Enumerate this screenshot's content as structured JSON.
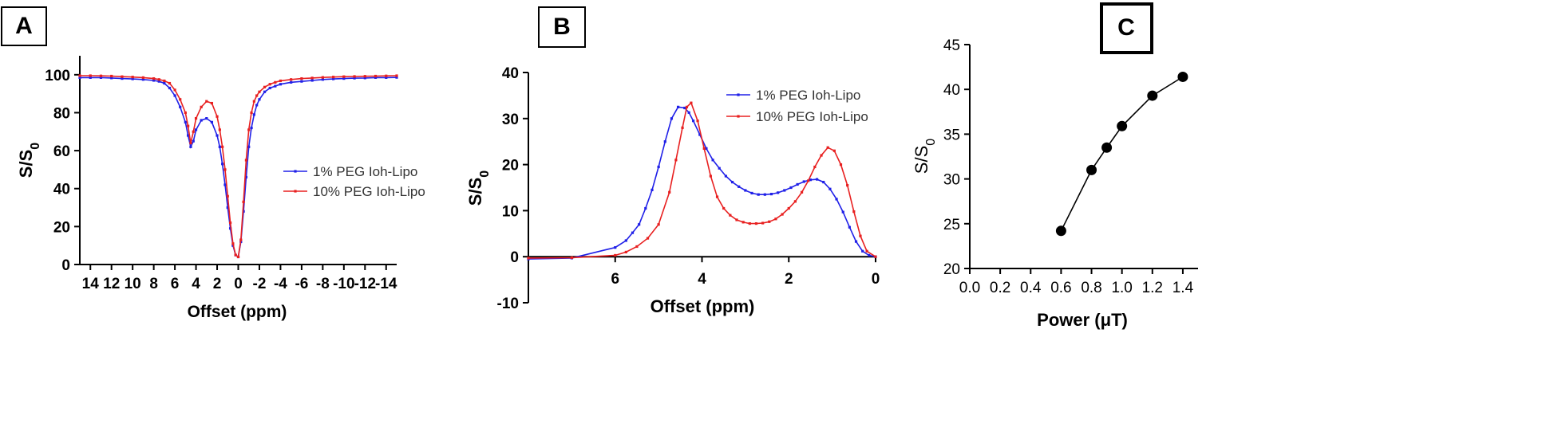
{
  "panels": [
    {
      "id": "A",
      "label": "A"
    },
    {
      "id": "B",
      "label": "B"
    },
    {
      "id": "C",
      "label": "C"
    }
  ],
  "colors": {
    "series1": "#2020e8",
    "series2": "#e82020",
    "axis": "#000000"
  },
  "chart_data": [
    {
      "panel": "A",
      "type": "line",
      "xlabel": "Offset (ppm)",
      "ylabel": "S/S",
      "ylabel_sub": "0",
      "xlim": [
        15,
        -15
      ],
      "ylim": [
        0,
        110
      ],
      "x_reversed": true,
      "xticks": [
        14,
        12,
        10,
        8,
        6,
        4,
        2,
        0,
        -2,
        -4,
        -6,
        -8,
        -10,
        -12,
        -14
      ],
      "xtick_labels": [
        "14",
        "12",
        "10",
        "8",
        "6",
        "4",
        "2",
        "0",
        "-2",
        "-4",
        "-6",
        "-8",
        "-10",
        "-12",
        "-14"
      ],
      "yticks": [
        0,
        20,
        40,
        60,
        80,
        100
      ],
      "ytick_labels": [
        "0",
        "20",
        "40",
        "60",
        "80",
        "100"
      ],
      "legend": "right",
      "series": [
        {
          "name": "1% PEG Ioh-Lipo",
          "color": "#2020e8",
          "x": [
            15,
            14,
            13,
            12,
            11,
            10,
            9,
            8,
            7.5,
            7,
            6.5,
            6,
            5.5,
            5,
            4.75,
            4.5,
            4.25,
            4,
            3.5,
            3,
            2.5,
            2,
            1.75,
            1.5,
            1.25,
            1,
            0.75,
            0.5,
            0.25,
            0,
            -0.25,
            -0.5,
            -0.75,
            -1,
            -1.25,
            -1.5,
            -1.75,
            -2,
            -2.5,
            -3,
            -3.5,
            -4,
            -5,
            -6,
            -7,
            -8,
            -9,
            -10,
            -11,
            -12,
            -13,
            -14,
            -15
          ],
          "y": [
            98.5,
            98.5,
            98.5,
            98.3,
            98,
            97.8,
            97.5,
            97,
            96.5,
            95.5,
            93,
            89,
            83,
            75,
            68,
            62,
            65,
            71,
            76,
            77,
            75,
            68,
            62,
            53,
            42,
            30,
            19,
            10,
            5,
            4,
            12,
            28,
            46,
            62,
            72,
            79,
            84,
            87,
            91,
            93,
            94,
            95,
            96,
            96.5,
            97,
            97.5,
            97.8,
            98,
            98.2,
            98.3,
            98.5,
            98.5,
            98.6
          ]
        },
        {
          "name": "10% PEG Ioh-Lipo",
          "color": "#e82020",
          "x": [
            15,
            14,
            13,
            12,
            11,
            10,
            9,
            8,
            7.5,
            7,
            6.5,
            6,
            5.5,
            5,
            4.75,
            4.5,
            4.25,
            4,
            3.5,
            3,
            2.5,
            2,
            1.75,
            1.5,
            1.25,
            1,
            0.75,
            0.5,
            0.25,
            0,
            -0.25,
            -0.5,
            -0.75,
            -1,
            -1.25,
            -1.5,
            -1.75,
            -2,
            -2.5,
            -3,
            -3.5,
            -4,
            -5,
            -6,
            -7,
            -8,
            -9,
            -10,
            -11,
            -12,
            -13,
            -14,
            -15
          ],
          "y": [
            99.5,
            99.5,
            99.4,
            99.3,
            99,
            98.8,
            98.5,
            98,
            97.5,
            96.8,
            95.5,
            92,
            87,
            80,
            73,
            64,
            70,
            77,
            83,
            86,
            85,
            78,
            71,
            62,
            50,
            36,
            22,
            11,
            5,
            4,
            13,
            33,
            55,
            71,
            80,
            86,
            89,
            91,
            93.5,
            95,
            96,
            96.8,
            97.5,
            98,
            98.3,
            98.6,
            98.8,
            99,
            99.1,
            99.2,
            99.3,
            99.4,
            99.5
          ]
        }
      ]
    },
    {
      "panel": "B",
      "type": "line",
      "xlabel": "Offset (ppm)",
      "ylabel": "S/S",
      "ylabel_sub": "0",
      "xlim": [
        8,
        0
      ],
      "ylim": [
        -10,
        40
      ],
      "x_reversed": true,
      "xticks": [
        6,
        4,
        2,
        0
      ],
      "xtick_labels": [
        "6",
        "4",
        "2",
        "0"
      ],
      "yticks": [
        -10,
        0,
        10,
        20,
        30,
        40
      ],
      "ytick_labels": [
        "-10",
        "0",
        "10",
        "20",
        "30",
        "40"
      ],
      "legend": "top-right",
      "series": [
        {
          "name": "1% PEG Ioh-Lipo",
          "color": "#2020e8",
          "x": [
            8,
            7,
            6,
            5.75,
            5.6,
            5.45,
            5.3,
            5.15,
            5,
            4.85,
            4.7,
            4.55,
            4.4,
            4.3,
            4.2,
            4.05,
            3.9,
            3.75,
            3.6,
            3.45,
            3.3,
            3.15,
            3,
            2.85,
            2.7,
            2.55,
            2.4,
            2.25,
            2.1,
            1.95,
            1.8,
            1.65,
            1.5,
            1.35,
            1.2,
            1.05,
            0.9,
            0.75,
            0.6,
            0.45,
            0.3,
            0.15,
            0
          ],
          "y": [
            -0.5,
            -0.3,
            2,
            3.5,
            5.2,
            7,
            10.5,
            14.5,
            19.5,
            25,
            30,
            32.5,
            32.3,
            31.3,
            29.5,
            26.5,
            23.5,
            21,
            19.2,
            17.5,
            16.2,
            15.2,
            14.4,
            13.8,
            13.5,
            13.5,
            13.6,
            13.9,
            14.4,
            15,
            15.7,
            16.3,
            16.7,
            16.8,
            16.2,
            14.7,
            12.5,
            9.7,
            6.4,
            3.3,
            1.2,
            0.3,
            0
          ]
        },
        {
          "name": "10% PEG Ioh-Lipo",
          "color": "#e82020",
          "x": [
            8,
            7,
            6,
            5.75,
            5.5,
            5.25,
            5,
            4.75,
            4.6,
            4.45,
            4.35,
            4.25,
            4.1,
            3.95,
            3.8,
            3.65,
            3.5,
            3.35,
            3.2,
            3.05,
            2.9,
            2.75,
            2.6,
            2.45,
            2.3,
            2.15,
            2,
            1.85,
            1.7,
            1.55,
            1.4,
            1.25,
            1.1,
            0.95,
            0.8,
            0.65,
            0.5,
            0.35,
            0.2,
            0
          ],
          "y": [
            -0.3,
            -0.2,
            0.3,
            1,
            2.2,
            4,
            7,
            14,
            21,
            28,
            32.5,
            33.4,
            29.5,
            23.5,
            17.5,
            13,
            10.5,
            9,
            8,
            7.5,
            7.2,
            7.2,
            7.3,
            7.6,
            8.2,
            9.2,
            10.5,
            12,
            14,
            16.5,
            19.5,
            22,
            23.7,
            23,
            20,
            15.5,
            9.8,
            4.5,
            1.2,
            0
          ]
        }
      ]
    },
    {
      "panel": "C",
      "type": "line",
      "xlabel": "Power (μT)",
      "ylabel": "S/S",
      "ylabel_sub": "0",
      "xlim": [
        0,
        1.5
      ],
      "ylim": [
        20,
        45
      ],
      "x_reversed": false,
      "xticks": [
        0.0,
        0.2,
        0.4,
        0.6,
        0.8,
        1.0,
        1.2,
        1.4
      ],
      "xtick_labels": [
        "0.0",
        "0.2",
        "0.4",
        "0.6",
        "0.8",
        "1.0",
        "1.2",
        "1.4"
      ],
      "yticks": [
        20,
        25,
        30,
        35,
        40,
        45
      ],
      "ytick_labels": [
        "20",
        "25",
        "30",
        "35",
        "40",
        "45"
      ],
      "legend": "none",
      "series": [
        {
          "color": "#000000",
          "x": [
            0.6,
            0.8,
            0.9,
            1.0,
            1.2,
            1.4
          ],
          "y": [
            24.2,
            31.0,
            33.5,
            35.9,
            39.3,
            41.4
          ]
        }
      ]
    }
  ]
}
